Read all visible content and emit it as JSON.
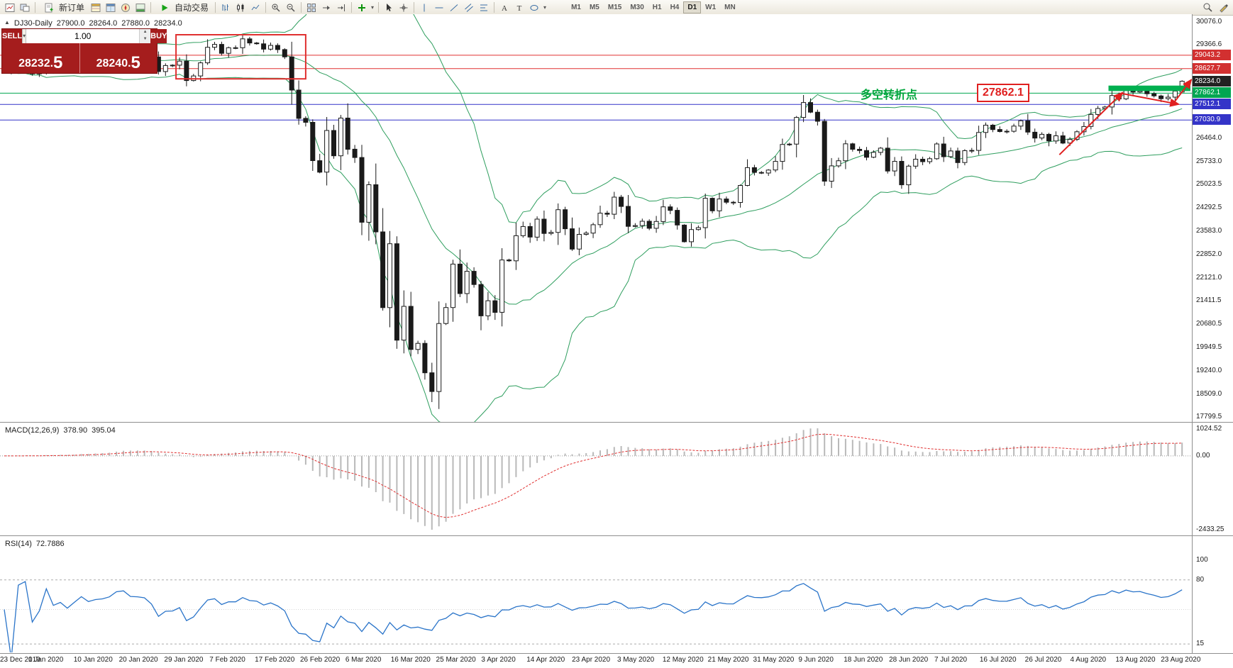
{
  "toolbar": {
    "new_order_label": "新订单",
    "auto_trading_label": "自动交易",
    "timeframes": [
      "M1",
      "M5",
      "M15",
      "M30",
      "H1",
      "H4",
      "D1",
      "W1",
      "MN"
    ],
    "active_timeframe": "D1"
  },
  "chart_header": {
    "symbol": "DJ30-Daily",
    "open": "27900.0",
    "high": "28264.0",
    "low": "27880.0",
    "close": "28234.0"
  },
  "trade_panel": {
    "sell_label": "SELL",
    "buy_label": "BUY",
    "volume": "1.00",
    "sell_price_main": "28232.",
    "sell_price_big": "5",
    "buy_price_main": "28240.",
    "buy_price_big": "5"
  },
  "annotations": {
    "turning_point_text": "多空转折点",
    "price_callout": "27862.1"
  },
  "price_axis": {
    "ticks": [
      {
        "label": "30076.0",
        "price": 30076.0
      },
      {
        "label": "29366.6",
        "price": 29366.6
      },
      {
        "label": "26464.0",
        "price": 26464.0
      },
      {
        "label": "25733.0",
        "price": 25733.0
      },
      {
        "label": "25023.5",
        "price": 25023.5
      },
      {
        "label": "24292.5",
        "price": 24292.5
      },
      {
        "label": "23583.0",
        "price": 23583.0
      },
      {
        "label": "22852.0",
        "price": 22852.0
      },
      {
        "label": "22121.0",
        "price": 22121.0
      },
      {
        "label": "21411.5",
        "price": 21411.5
      },
      {
        "label": "20680.5",
        "price": 20680.5
      },
      {
        "label": "19949.5",
        "price": 19949.5
      },
      {
        "label": "19240.0",
        "price": 19240.0
      },
      {
        "label": "18509.0",
        "price": 18509.0
      },
      {
        "label": "17799.5",
        "price": 17799.5
      }
    ],
    "badges": [
      {
        "label": "29043.2",
        "price": 29043.2,
        "bg": "#d23030"
      },
      {
        "label": "28627.7",
        "price": 28627.7,
        "bg": "#d23030"
      },
      {
        "label": "28234.0",
        "price": 28234.0,
        "bg": "#222222"
      },
      {
        "label": "27862.1",
        "price": 27862.1,
        "bg": "#00a651"
      },
      {
        "label": "27512.1",
        "price": 27512.1,
        "bg": "#3434c8"
      },
      {
        "label": "27030.9",
        "price": 27030.9,
        "bg": "#3434c8"
      }
    ]
  },
  "macd_panel": {
    "title": "MACD(12,26,9)",
    "main_value": "378.90",
    "signal_value": "395.04",
    "scale_top": "1024.52",
    "scale_zero": "0.00",
    "scale_bottom": "-2433.25"
  },
  "rsi_panel": {
    "title": "RSI(14)",
    "value": "72.7886",
    "scale": [
      {
        "label": "100",
        "value": 100
      },
      {
        "label": "80",
        "value": 80
      },
      {
        "label": "15",
        "value": 15
      }
    ],
    "levels": [
      {
        "value": 80,
        "style": "dash"
      },
      {
        "value": 50,
        "style": "dot"
      },
      {
        "value": 15,
        "style": "dash"
      }
    ]
  },
  "chart_data": {
    "type": "candlestick",
    "symbol": "DJ30",
    "timeframe": "Daily",
    "y_range": [
      17799.5,
      30076.0
    ],
    "x_labels": [
      "23 Dec 2019",
      "1 Jan 2020",
      "10 Jan 2020",
      "20 Jan 2020",
      "29 Jan 2020",
      "7 Feb 2020",
      "17 Feb 2020",
      "26 Feb 2020",
      "6 Mar 2020",
      "16 Mar 2020",
      "25 Mar 2020",
      "3 Apr 2020",
      "14 Apr 2020",
      "23 Apr 2020",
      "3 May 2020",
      "12 May 2020",
      "21 May 2020",
      "31 May 2020",
      "9 Jun 2020",
      "18 Jun 2020",
      "28 Jun 2020",
      "7 Jul 2020",
      "16 Jul 2020",
      "26 Jul 2020",
      "4 Aug 2020",
      "13 Aug 2020",
      "23 Aug 2020"
    ],
    "closes": [
      28551,
      28515,
      28621,
      28645,
      28462,
      28538,
      28868,
      28634,
      28703,
      28583,
      28745,
      28956,
      28823,
      28907,
      28939,
      29030,
      29297,
      29348,
      29196,
      29186,
      29160,
      28989,
      28535,
      28722,
      28734,
      28859,
      28256,
      28399,
      28807,
      29290,
      29379,
      29102,
      29276,
      29276,
      29551,
      29423,
      29398,
      29232,
      29348,
      29219,
      28992,
      27960,
      27081,
      26957,
      25766,
      25409,
      26703,
      25917,
      27090,
      26121,
      25864,
      23851,
      25018,
      23553,
      21200,
      23185,
      20188,
      21237,
      19898,
      20087,
      19173,
      18591,
      20704,
      21200,
      22552,
      21636,
      22327,
      21917,
      20943,
      21413,
      21052,
      22679,
      22653,
      23433,
      23719,
      23390,
      23949,
      23504,
      23537,
      24242,
      23650,
      23018,
      23475,
      23515,
      23775,
      24133,
      24101,
      24633,
      24345,
      23723,
      23749,
      23883,
      23664,
      23875,
      24331,
      24221,
      23764,
      23247,
      23625,
      23685,
      24597,
      24206,
      24575,
      24474,
      24465,
      24995,
      25548,
      25400,
      25383,
      25475,
      25742,
      26269,
      26281,
      27110,
      27572,
      27272,
      26989,
      25128,
      25605,
      25763,
      26289,
      26119,
      26080,
      25871,
      26024,
      26156,
      25445,
      25745,
      25015,
      25595,
      25812,
      25734,
      25827,
      26286,
      25890,
      26067,
      25706,
      26075,
      26085,
      26642,
      26870,
      26734,
      26671,
      26680,
      26840,
      27005,
      26652,
      26469,
      26584,
      26379,
      26539,
      26313,
      26428,
      26664,
      26828,
      27201,
      27386,
      27433,
      27791,
      27686,
      27977,
      27897,
      27931,
      27845,
      27778,
      27693,
      27740,
      27930,
      28234
    ],
    "last_candle": {
      "open": 27900.0,
      "high": 28264.0,
      "low": 27880.0,
      "close": 28234.0
    },
    "indicators": {
      "bollinger_period": 20,
      "bollinger_dev": 2,
      "macd": [
        12,
        26,
        9
      ],
      "rsi_period": 14
    },
    "hlines": [
      {
        "price": 29043.2,
        "color": "#e03030"
      },
      {
        "price": 28627.7,
        "color": "#e03030"
      },
      {
        "price": 27862.1,
        "color": "#00a651"
      },
      {
        "price": 27512.1,
        "color": "#3434c8"
      },
      {
        "price": 27030.9,
        "color": "#3434c8"
      }
    ],
    "rect_annotation": {
      "i1": 24.5,
      "i2": 43,
      "price_top": 29680,
      "price_bottom": 28310,
      "color": "#e03030"
    },
    "green_segment": {
      "i1": 157.5,
      "i2": 173,
      "price_top": 28100,
      "price_bottom": 27930,
      "color": "#00b050"
    },
    "arrows": [
      {
        "i1": 150.5,
        "p1": 25950,
        "i2": 159.5,
        "p2": 27880,
        "head": true
      },
      {
        "i1": 159.5,
        "p1": 27850,
        "i2": 167.5,
        "p2": 27520,
        "head": true
      },
      {
        "i1": 166.8,
        "p1": 27560,
        "i2": 169.3,
        "p2": 28280,
        "head": true
      }
    ],
    "arrow_color": "#e02020",
    "band_color": "#2e9e5e"
  }
}
